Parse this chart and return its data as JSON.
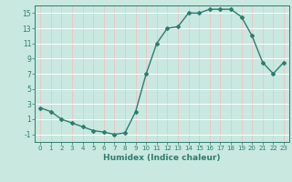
{
  "x": [
    0,
    1,
    2,
    3,
    4,
    5,
    6,
    7,
    8,
    9,
    10,
    11,
    12,
    13,
    14,
    15,
    16,
    17,
    18,
    19,
    20,
    21,
    22,
    23
  ],
  "y": [
    2.5,
    2.0,
    1.0,
    0.5,
    0.0,
    -0.5,
    -0.7,
    -1.0,
    -0.8,
    2.0,
    7.0,
    11.0,
    13.0,
    13.2,
    15.0,
    15.0,
    15.5,
    15.5,
    15.5,
    14.5,
    12.0,
    8.5,
    7.0,
    8.5
  ],
  "line_color": "#2e7d6e",
  "marker": "D",
  "marker_size": 2,
  "bg_color": "#c8e8e0",
  "grid_color_h": "#ffffff",
  "grid_color_v": "#e8c8c8",
  "axis_color": "#2e7d6e",
  "xlabel": "Humidex (Indice chaleur)",
  "ylim": [
    -2,
    16
  ],
  "xlim": [
    -0.5,
    23.5
  ],
  "yticks": [
    -1,
    1,
    3,
    5,
    7,
    9,
    11,
    13,
    15
  ],
  "xticks": [
    0,
    1,
    2,
    3,
    4,
    5,
    6,
    7,
    8,
    9,
    10,
    11,
    12,
    13,
    14,
    15,
    16,
    17,
    18,
    19,
    20,
    21,
    22,
    23
  ]
}
